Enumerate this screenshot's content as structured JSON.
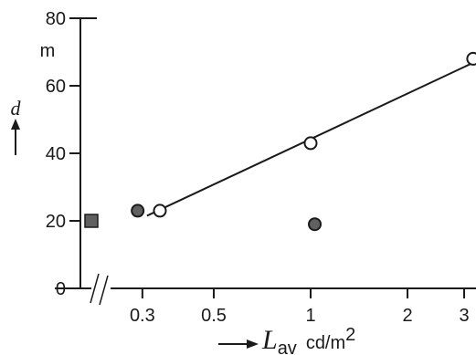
{
  "chart_data": {
    "type": "scatter",
    "x_scale": "log",
    "x_ticks": [
      0.3,
      0.5,
      1,
      2,
      3
    ],
    "x_tick_labels": [
      "0.3",
      "0.5",
      "1",
      "2",
      "3"
    ],
    "xlim": [
      0.2,
      3.4
    ],
    "y_ticks": [
      0,
      20,
      40,
      60,
      80
    ],
    "y_tick_labels": [
      "0",
      "20",
      "40",
      "60",
      "80"
    ],
    "ylim": [
      0,
      80
    ],
    "y_unit": "m",
    "ylabel": "d",
    "xlabel": {
      "symbol": "L",
      "subscript": "av",
      "unit": "cd/m",
      "unit_sup": "2"
    },
    "x_axis_break": true,
    "grid": false,
    "series": [
      {
        "marker": "open-circle",
        "x": [
          0.34,
          1.0,
          3.2
        ],
        "y": [
          23,
          43,
          68
        ]
      },
      {
        "marker": "filled-circle",
        "x": [
          0.29,
          1.03
        ],
        "y": [
          23,
          19
        ]
      },
      {
        "marker": "filled-square",
        "x_position": "left of axis break",
        "y": [
          20
        ]
      }
    ],
    "fit_line": {
      "x": [
        0.31,
        3.4
      ],
      "y": [
        21.5,
        68
      ]
    }
  },
  "colors": {
    "ink": "#1a1a1a",
    "filled_marker": "#606060",
    "open_marker_fill": "#ffffff"
  },
  "icons": {
    "ylabel_arrow": "up-arrow",
    "xlabel_arrow": "right-arrow"
  }
}
